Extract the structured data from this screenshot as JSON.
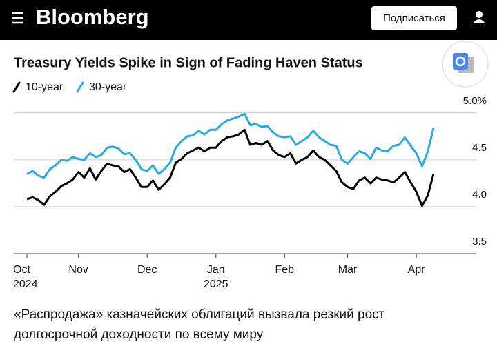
{
  "header": {
    "logo": "Bloomberg",
    "subscribe": "Подписаться"
  },
  "chart_data": {
    "type": "line",
    "title": "Treasury Yields Spike in Sign of Fading Haven Status",
    "categories": [
      "Oct\n2024",
      null,
      null,
      null,
      null,
      null,
      null,
      null,
      null,
      "Nov",
      null,
      null,
      null,
      null,
      null,
      null,
      null,
      null,
      null,
      null,
      null,
      "Dec",
      null,
      null,
      null,
      null,
      null,
      null,
      null,
      null,
      null,
      null,
      null,
      "Jan\n2025",
      null,
      null,
      null,
      null,
      null,
      null,
      null,
      null,
      null,
      null,
      null,
      "Feb",
      null,
      null,
      null,
      null,
      null,
      null,
      null,
      null,
      null,
      null,
      "Mar",
      null,
      null,
      null,
      null,
      null,
      null,
      null,
      null,
      null,
      null,
      null,
      "Apr",
      null,
      null,
      null
    ],
    "series": [
      {
        "name": "10-year",
        "color": "#000000",
        "values": [
          4.08,
          4.1,
          4.07,
          4.02,
          4.11,
          4.16,
          4.22,
          4.25,
          4.29,
          4.37,
          4.31,
          4.41,
          4.29,
          4.38,
          4.46,
          4.44,
          4.43,
          4.37,
          4.4,
          4.31,
          4.21,
          4.21,
          4.28,
          4.18,
          4.24,
          4.31,
          4.47,
          4.51,
          4.57,
          4.6,
          4.63,
          4.59,
          4.63,
          4.63,
          4.7,
          4.74,
          4.75,
          4.77,
          4.82,
          4.66,
          4.68,
          4.66,
          4.7,
          4.6,
          4.55,
          4.53,
          4.57,
          4.46,
          4.5,
          4.53,
          4.6,
          4.53,
          4.5,
          4.44,
          4.38,
          4.26,
          4.21,
          4.19,
          4.28,
          4.31,
          4.25,
          4.31,
          4.29,
          4.28,
          4.26,
          4.31,
          4.37,
          4.26,
          4.16,
          4.01,
          4.12,
          4.35
        ]
      },
      {
        "name": "30-year",
        "color": "#29a9e1",
        "values": [
          4.35,
          4.38,
          4.33,
          4.31,
          4.4,
          4.44,
          4.5,
          4.49,
          4.53,
          4.51,
          4.5,
          4.57,
          4.53,
          4.55,
          4.63,
          4.64,
          4.62,
          4.56,
          4.57,
          4.5,
          4.4,
          4.38,
          4.44,
          4.35,
          4.4,
          4.47,
          4.63,
          4.7,
          4.75,
          4.76,
          4.81,
          4.77,
          4.82,
          4.82,
          4.88,
          4.92,
          4.94,
          4.96,
          4.99,
          4.87,
          4.88,
          4.85,
          4.86,
          4.79,
          4.75,
          4.74,
          4.75,
          4.66,
          4.7,
          4.74,
          4.81,
          4.74,
          4.7,
          4.66,
          4.65,
          4.5,
          4.46,
          4.53,
          4.59,
          4.57,
          4.51,
          4.63,
          4.6,
          4.59,
          4.65,
          4.66,
          4.74,
          4.65,
          4.57,
          4.43,
          4.59,
          4.84
        ]
      }
    ],
    "ylim": [
      3.5,
      5.05
    ],
    "yticks": [
      3.5,
      {
        "value": 4,
        "label": "4.0"
      },
      4.5,
      {
        "value": 5,
        "label": "5.0%"
      }
    ],
    "grid": true
  },
  "caption": "«Распродажа» казначейских облигаций вызвала резкий рост долгосрочной доходности по всему миру"
}
